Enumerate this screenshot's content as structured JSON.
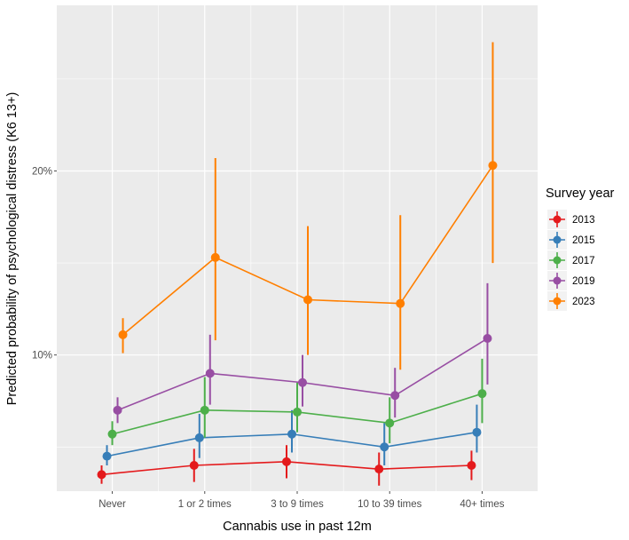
{
  "chart_data": {
    "type": "line",
    "xlabel": "Cannabis use in past 12m",
    "ylabel": "Predicted probability of psychological distress (K6 13+)",
    "categories": [
      "Never",
      "1 or 2 times",
      "3 to 9 times",
      "10 to 39 times",
      "40+ times"
    ],
    "y_ticks": [
      {
        "value": 0.1,
        "label": "10%"
      },
      {
        "value": 0.2,
        "label": "20%"
      }
    ],
    "y_minor_ticks": [
      0.05,
      0.15,
      0.25
    ],
    "ylim": [
      0.026,
      0.29
    ],
    "grid": true,
    "legend": {
      "title": "Survey year",
      "position": "right"
    },
    "series": [
      {
        "name": "2013",
        "color": "#E41A1C",
        "values": [
          0.035,
          0.04,
          0.042,
          0.038,
          0.04
        ],
        "lower": [
          0.03,
          0.031,
          0.033,
          0.029,
          0.032
        ],
        "upper": [
          0.04,
          0.049,
          0.051,
          0.047,
          0.048
        ]
      },
      {
        "name": "2015",
        "color": "#377EB8",
        "values": [
          0.045,
          0.055,
          0.057,
          0.05,
          0.058
        ],
        "lower": [
          0.04,
          0.044,
          0.047,
          0.04,
          0.047
        ],
        "upper": [
          0.051,
          0.068,
          0.07,
          0.063,
          0.073
        ]
      },
      {
        "name": "2017",
        "color": "#4DAF4A",
        "values": [
          0.057,
          0.07,
          0.069,
          0.063,
          0.079
        ],
        "lower": [
          0.051,
          0.055,
          0.058,
          0.052,
          0.063
        ],
        "upper": [
          0.064,
          0.088,
          0.085,
          0.077,
          0.098
        ]
      },
      {
        "name": "2019",
        "color": "#984EA3",
        "values": [
          0.07,
          0.09,
          0.085,
          0.078,
          0.109
        ],
        "lower": [
          0.063,
          0.073,
          0.072,
          0.066,
          0.084
        ],
        "upper": [
          0.077,
          0.111,
          0.1,
          0.093,
          0.139
        ]
      },
      {
        "name": "2023",
        "color": "#FF7F00",
        "values": [
          0.111,
          0.153,
          0.13,
          0.128,
          0.203
        ],
        "lower": [
          0.101,
          0.108,
          0.1,
          0.092,
          0.15
        ],
        "upper": [
          0.12,
          0.207,
          0.17,
          0.176,
          0.27
        ]
      }
    ]
  }
}
